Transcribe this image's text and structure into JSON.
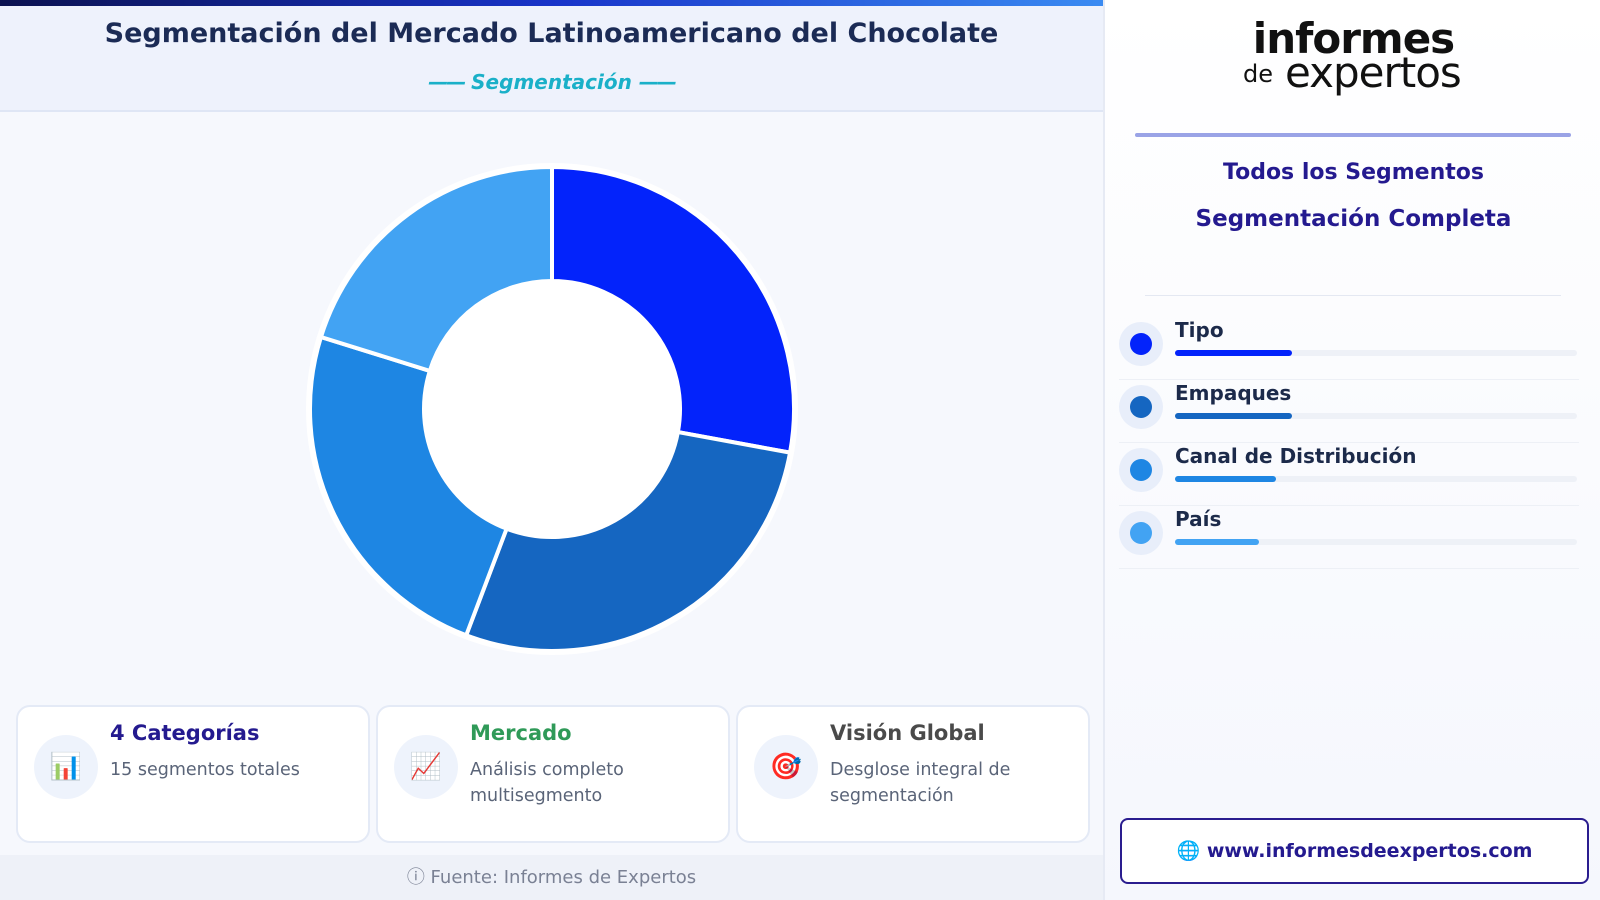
{
  "header": {
    "title": "Segmentación del Mercado Latinoamericano del Chocolate",
    "subtitle": "Segmentación",
    "subtitle_dash": "——"
  },
  "chart_data": {
    "type": "pie",
    "donut": true,
    "categories": [
      "Tipo",
      "Empaques",
      "Canal de Distribución",
      "País"
    ],
    "values": [
      29,
      29,
      25,
      21
    ],
    "colors": [
      "#0323fb",
      "#1566c1",
      "#1e86e3",
      "#42a3f3"
    ]
  },
  "cards": [
    {
      "icon": "📊",
      "icon_name": "bar-chart-icon",
      "title": "4 Categorías",
      "desc": "15 segmentos totales"
    },
    {
      "icon": "📈",
      "icon_name": "trend-chart-icon",
      "title": "Mercado",
      "desc": "Análisis completo multisegmento"
    },
    {
      "icon": "🎯",
      "icon_name": "target-icon",
      "title": "Visión Global",
      "desc": "Desglose integral de segmentación"
    }
  ],
  "footer": {
    "icon": "ⓘ",
    "text": "Fuente: Informes de Expertos"
  },
  "logo": {
    "line1": "informes",
    "line2a": "de",
    "line2b": "expertos"
  },
  "sidebar": {
    "heading1": "Todos los Segmentos",
    "heading2": "Segmentación Completa",
    "segments": [
      {
        "label": "Tipo",
        "color": "#0323fb",
        "bar": 0.29
      },
      {
        "label": "Empaques",
        "color": "#1566c1",
        "bar": 0.29
      },
      {
        "label": "Canal de Distribución",
        "color": "#1e86e3",
        "bar": 0.25
      },
      {
        "label": "País",
        "color": "#42a3f3",
        "bar": 0.21
      }
    ]
  },
  "link": {
    "icon": "🌐",
    "text": "www.informesdeexpertos.com"
  }
}
